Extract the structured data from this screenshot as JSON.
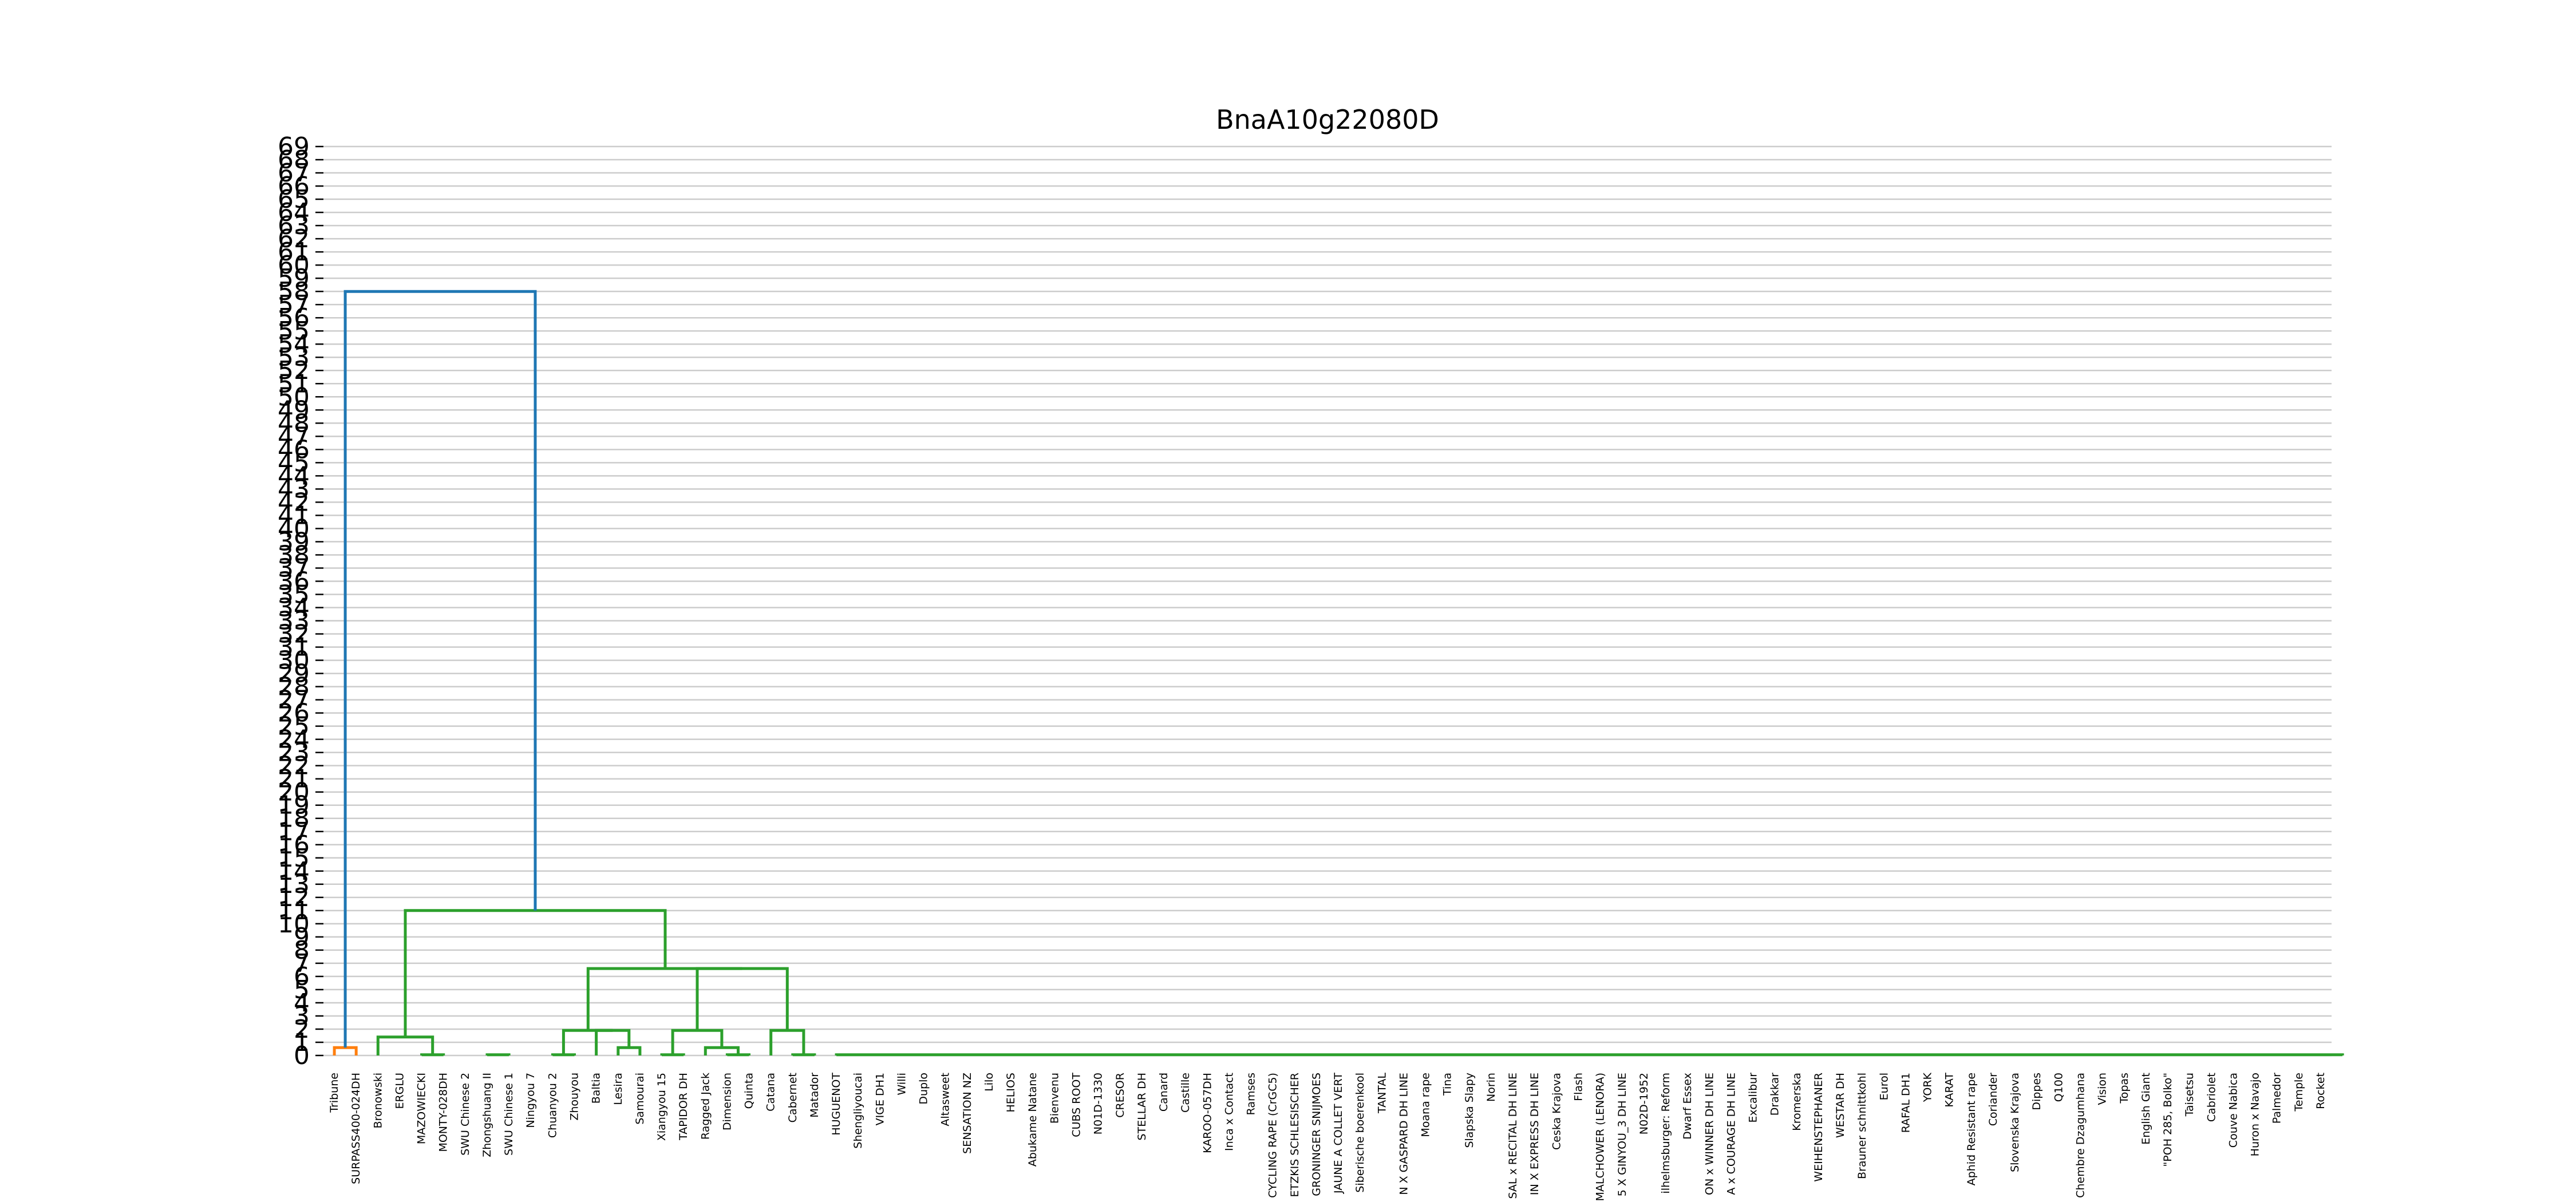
{
  "chart_data": {
    "type": "dendrogram",
    "title": "BnaA10g22080D",
    "xlabel": "",
    "ylabel": "",
    "ylim": [
      0,
      69
    ],
    "y_ticks": [
      0,
      1,
      2,
      3,
      4,
      5,
      6,
      7,
      8,
      9,
      10,
      11,
      12,
      13,
      14,
      15,
      16,
      17,
      18,
      19,
      20,
      21,
      22,
      23,
      24,
      25,
      26,
      27,
      28,
      29,
      30,
      31,
      32,
      33,
      34,
      35,
      36,
      37,
      38,
      39,
      40,
      41,
      42,
      43,
      44,
      45,
      46,
      47,
      48,
      49,
      50,
      51,
      52,
      53,
      54,
      55,
      56,
      57,
      58,
      59,
      60,
      61,
      62,
      63,
      64,
      65,
      66,
      67,
      68,
      69
    ],
    "grid": true,
    "leaf_spacing": 10,
    "leaves": [
      "Tribune",
      "SURPASS400-024DH",
      "Bronowski",
      "ERGLU",
      "MAZOWIECKI",
      "MONTY-028DH",
      "SWU Chinese 2",
      "Zhongshuang II",
      "SWU Chinese 1",
      "Ningyou 7",
      "Chuanyou 2",
      "Zhouyou",
      "Baltia",
      "Lesira",
      "Samourai",
      "Xiangyou 15",
      "TAPIDOR DH",
      "Ragged Jack",
      "Dimension",
      "Quinta",
      "Catana",
      "Cabernet",
      "Matador",
      "HUGUENOT",
      "Shengliyoucai",
      "VIGE DH1",
      "Willi",
      "Duplo",
      "Altasweet",
      "SENSATION NZ",
      "Lilo",
      "HELIOS",
      "Abukame Natane",
      "Bienvenu",
      "CUBS ROOT",
      "N01D-1330",
      "CRESOR",
      "STELLAR DH",
      "Canard",
      "Castille",
      "KAROO-057DH",
      "Inca x Contact",
      "Ramses",
      "CYCLING RAPE (CrGC5)",
      "ETZKIS SCHLESISCHER",
      "GRONINGER SNIJMOES",
      "JAUNE A COLLET VERT",
      "Siberische boerenkool",
      "TANTAL",
      "N X GASPARD DH LINE",
      "Moana rape",
      "Tina",
      "Slapska Slapy",
      "Norin",
      "SAL x RECITAL DH LINE",
      "IN X EXPRESS DH LINE",
      "Ceska Krajova",
      "Flash",
      "MALCHOWER (LENORA)",
      "5 X GINYOU_3 DH LINE",
      "N02D-1952",
      "ilhelmsburger: Reform",
      "Dwarf Essex",
      "ON x WINNER DH LINE",
      "A x COURAGE DH LINE",
      "Excalibur",
      "Drakkar",
      "Kromerska",
      "WEIHENSTEPHANER",
      "WESTAR DH",
      "Brauner schnittkohl",
      "Eurol",
      "RAFAL DH1",
      "YORK",
      "KARAT",
      "Aphid Resistant rape",
      "Coriander",
      "Slovenska Krajova",
      "Dippes",
      "Q100",
      "Chembre Dzagumhana",
      "Vision",
      "Topas",
      "English Giant",
      "\"POH 285, Bolko\"",
      "Taisetsu",
      "Cabriolet",
      "Couve Nabica",
      "Huron x Navajo",
      "Palmedor",
      "Temple",
      "Rocket"
    ],
    "links": [
      {
        "x": [
          5,
          5,
          15,
          15
        ],
        "y": [
          0,
          0.6,
          0.6,
          0
        ],
        "color": "#ff7f0e"
      },
      {
        "x": [
          45,
          45,
          55,
          55
        ],
        "y": [
          0,
          0.05,
          0.05,
          0
        ],
        "color": "#2ca02c"
      },
      {
        "x": [
          25,
          25,
          50,
          50
        ],
        "y": [
          0,
          1.4,
          1.4,
          0.05
        ],
        "color": "#2ca02c"
      },
      {
        "x": [
          75,
          75,
          85,
          85
        ],
        "y": [
          0,
          0.05,
          0.05,
          0
        ],
        "color": "#2ca02c"
      },
      {
        "x": [
          105,
          105,
          115,
          115
        ],
        "y": [
          0,
          0.05,
          0.05,
          0
        ],
        "color": "#2ca02c"
      },
      {
        "x": [
          135,
          135,
          145,
          145
        ],
        "y": [
          0,
          0.6,
          0.6,
          0
        ],
        "color": "#2ca02c"
      },
      {
        "x": [
          125,
          125,
          140,
          140
        ],
        "y": [
          0,
          1.9,
          1.9,
          0.6
        ],
        "color": "#2ca02c"
      },
      {
        "x": [
          110,
          110,
          132.5,
          132.5
        ],
        "y": [
          0.05,
          1.9,
          1.9,
          1.9
        ],
        "color": "#2ca02c"
      },
      {
        "x": [
          155,
          155,
          165,
          165
        ],
        "y": [
          0,
          0.05,
          0.05,
          0
        ],
        "color": "#2ca02c"
      },
      {
        "x": [
          185,
          185,
          195,
          195
        ],
        "y": [
          0,
          0.05,
          0.05,
          0
        ],
        "color": "#2ca02c"
      },
      {
        "x": [
          175,
          175,
          190,
          190
        ],
        "y": [
          0,
          0.6,
          0.6,
          0.05
        ],
        "color": "#2ca02c"
      },
      {
        "x": [
          160,
          160,
          182.5,
          182.5
        ],
        "y": [
          0.05,
          1.9,
          1.9,
          0.6
        ],
        "color": "#2ca02c"
      },
      {
        "x": [
          215,
          215,
          225,
          225
        ],
        "y": [
          0,
          0.05,
          0.05,
          0
        ],
        "color": "#2ca02c"
      },
      {
        "x": [
          205,
          205,
          220,
          220
        ],
        "y": [
          0,
          1.9,
          1.9,
          0.05
        ],
        "color": "#2ca02c"
      },
      {
        "x": [
          171.25,
          171.25,
          212.5,
          212.5
        ],
        "y": [
          1.9,
          6.6,
          6.6,
          1.9
        ],
        "color": "#2ca02c"
      },
      {
        "x": [
          121.25,
          121.25,
          191.875,
          191.875
        ],
        "y": [
          1.9,
          6.6,
          6.6,
          6.6
        ],
        "color": "#2ca02c"
      },
      {
        "x": [
          37.5,
          37.5,
          156.5625,
          156.5625
        ],
        "y": [
          1.4,
          11.0,
          11.0,
          6.6
        ],
        "color": "#2ca02c"
      },
      {
        "x": [
          235,
          235,
          925,
          925
        ],
        "y": [
          0,
          0.05,
          0.05,
          0
        ],
        "color": "#2ca02c"
      },
      {
        "x": [
          10,
          10,
          97.03,
          97.03
        ],
        "y": [
          0.6,
          58.0,
          58.0,
          11.0
        ],
        "color": "#1f77b4"
      }
    ]
  }
}
